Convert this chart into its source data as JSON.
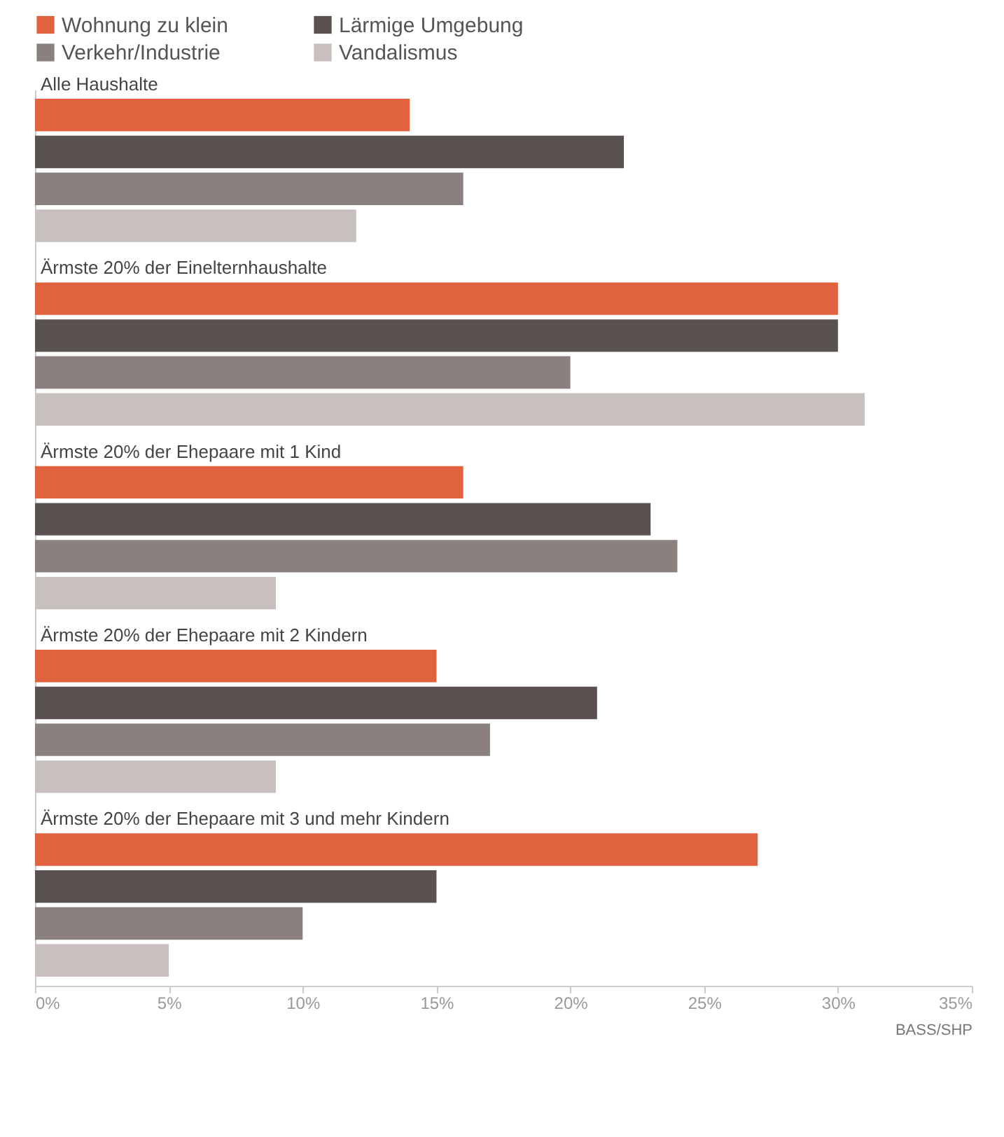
{
  "chart_data": {
    "type": "bar",
    "orientation": "horizontal",
    "categories": [
      "Alle Haushalte",
      "Ärmste 20% der Einelternhaushalte",
      "Ärmste 20% der Ehepaare mit 1 Kind",
      "Ärmste 20% der Ehepaare mit 2 Kindern",
      "Ärmste 20% der Ehepaare mit 3 und mehr Kindern"
    ],
    "series": [
      {
        "name": "Wohnung zu klein",
        "color": "#e0623f",
        "values": [
          14,
          30,
          16,
          15,
          27
        ]
      },
      {
        "name": "Lärmige Umgebung",
        "color": "#5a5250",
        "values": [
          22,
          30,
          23,
          21,
          15
        ]
      },
      {
        "name": "Verkehr/Industrie",
        "color": "#8a807e",
        "values": [
          16,
          20,
          24,
          17,
          10
        ]
      },
      {
        "name": "Vandalismus",
        "color": "#c8c0be",
        "values": [
          12,
          31,
          9,
          9,
          5
        ]
      }
    ],
    "xlim": [
      0,
      35
    ],
    "xticks": [
      {
        "value": 0,
        "label": "0%"
      },
      {
        "value": 5,
        "label": "5%"
      },
      {
        "value": 10,
        "label": "10%"
      },
      {
        "value": 15,
        "label": "15%"
      },
      {
        "value": 20,
        "label": "20%"
      },
      {
        "value": 25,
        "label": "25%"
      },
      {
        "value": 30,
        "label": "30%"
      },
      {
        "value": 35,
        "label": "35%"
      }
    ],
    "legend": "top",
    "annotations": [
      "BASS/SHP"
    ]
  }
}
